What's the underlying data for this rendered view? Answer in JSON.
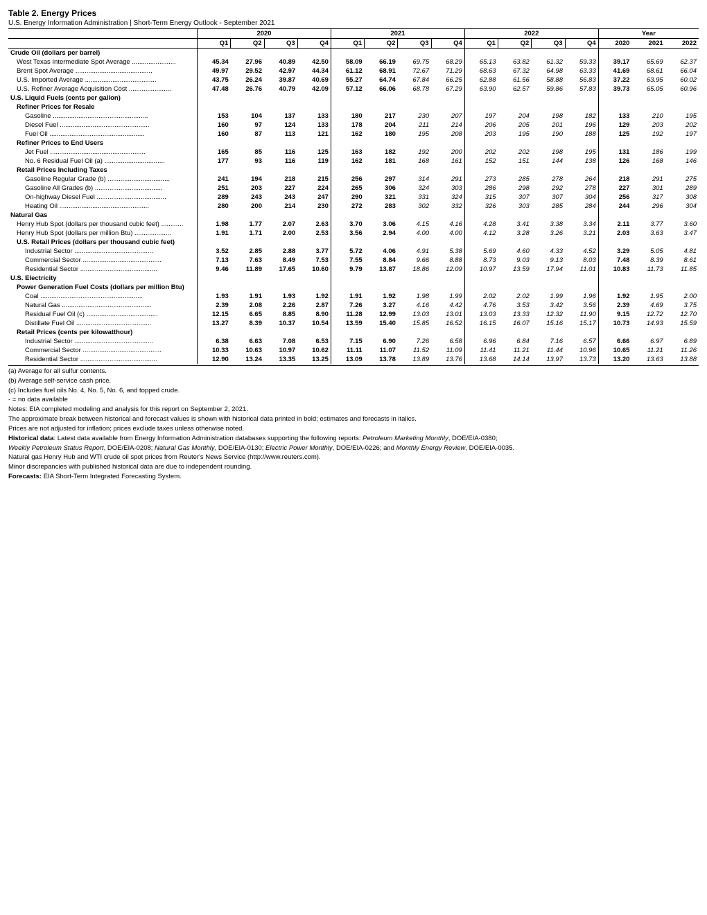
{
  "title": "Table 2.  Energy Prices",
  "subtitle": "U.S. Energy Information Administration  |  Short-Term Energy Outlook - September 2021",
  "year_headers": [
    "2020",
    "2021",
    "2022",
    "Year"
  ],
  "subcol_headers": [
    "Q1",
    "Q2",
    "Q3",
    "Q4",
    "Q1",
    "Q2",
    "Q3",
    "Q4",
    "Q1",
    "Q2",
    "Q3",
    "Q4",
    "2020",
    "2021",
    "2022"
  ],
  "rows": [
    {
      "type": "section",
      "label": "Crude Oil (dollars per barrel)"
    },
    {
      "type": "data",
      "label": "West Texas Intermediate Spot Average",
      "indent": 1,
      "dots": true,
      "vals": [
        "45.34",
        "27.96",
        "40.89",
        "42.50",
        "58.09",
        "66.19",
        "69.75",
        "68.29",
        "65.13",
        "63.82",
        "61.32",
        "59.33",
        "39.17",
        "65.69",
        "62.37"
      ]
    },
    {
      "type": "data",
      "label": "Brent Spot Average",
      "indent": 1,
      "dots": true,
      "vals": [
        "49.97",
        "29.52",
        "42.97",
        "44.34",
        "61.12",
        "68.91",
        "72.67",
        "71.29",
        "68.63",
        "67.32",
        "64.98",
        "63.33",
        "41.69",
        "68.61",
        "66.04"
      ]
    },
    {
      "type": "data",
      "label": "U.S. Imported Average",
      "indent": 1,
      "dots": true,
      "vals": [
        "43.75",
        "26.24",
        "39.87",
        "40.69",
        "55.27",
        "64.74",
        "67.84",
        "66.25",
        "62.88",
        "61.56",
        "58.88",
        "56.83",
        "37.22",
        "63.95",
        "60.02"
      ]
    },
    {
      "type": "data",
      "label": "U.S. Refiner Average Acquisition Cost",
      "indent": 1,
      "dots": true,
      "vals": [
        "47.48",
        "26.76",
        "40.79",
        "42.09",
        "57.12",
        "66.06",
        "68.78",
        "67.29",
        "63.90",
        "62.57",
        "59.86",
        "57.83",
        "39.73",
        "65.05",
        "60.96"
      ]
    },
    {
      "type": "section",
      "label": "U.S. Liquid Fuels (cents per gallon)"
    },
    {
      "type": "subhead",
      "label": "Refiner Prices for Resale",
      "indent": 1
    },
    {
      "type": "data",
      "label": "Gasoline",
      "indent": 2,
      "dots": true,
      "vals": [
        "153",
        "104",
        "137",
        "133",
        "180",
        "217",
        "230",
        "207",
        "197",
        "204",
        "198",
        "182",
        "133",
        "210",
        "195"
      ]
    },
    {
      "type": "data",
      "label": "Diesel Fuel",
      "indent": 2,
      "dots": true,
      "vals": [
        "160",
        "97",
        "124",
        "133",
        "178",
        "204",
        "211",
        "214",
        "206",
        "205",
        "201",
        "196",
        "129",
        "203",
        "202"
      ]
    },
    {
      "type": "data",
      "label": "Fuel Oil",
      "indent": 2,
      "dots": true,
      "vals": [
        "160",
        "87",
        "113",
        "121",
        "162",
        "180",
        "195",
        "208",
        "203",
        "195",
        "190",
        "188",
        "125",
        "192",
        "197"
      ]
    },
    {
      "type": "subhead",
      "label": "Refiner Prices to End Users",
      "indent": 1
    },
    {
      "type": "data",
      "label": "Jet Fuel",
      "indent": 2,
      "dots": true,
      "vals": [
        "165",
        "85",
        "116",
        "125",
        "163",
        "182",
        "192",
        "200",
        "202",
        "202",
        "198",
        "195",
        "131",
        "186",
        "199"
      ]
    },
    {
      "type": "data",
      "label": "No. 6 Residual Fuel Oil (a)",
      "indent": 2,
      "dots": true,
      "vals": [
        "177",
        "93",
        "116",
        "119",
        "162",
        "181",
        "168",
        "161",
        "152",
        "151",
        "144",
        "138",
        "126",
        "168",
        "146"
      ]
    },
    {
      "type": "subhead",
      "label": "Retail Prices Including Taxes",
      "indent": 1
    },
    {
      "type": "data",
      "label": "Gasoline Regular Grade (b)",
      "indent": 2,
      "dots": true,
      "vals": [
        "241",
        "194",
        "218",
        "215",
        "256",
        "297",
        "314",
        "291",
        "273",
        "285",
        "278",
        "264",
        "218",
        "291",
        "275"
      ]
    },
    {
      "type": "data",
      "label": "Gasoline All Grades (b)",
      "indent": 2,
      "dots": true,
      "vals": [
        "251",
        "203",
        "227",
        "224",
        "265",
        "306",
        "324",
        "303",
        "286",
        "298",
        "292",
        "278",
        "227",
        "301",
        "289"
      ]
    },
    {
      "type": "data",
      "label": "On-highway Diesel Fuel",
      "indent": 2,
      "dots": true,
      "vals": [
        "289",
        "243",
        "243",
        "247",
        "290",
        "321",
        "331",
        "324",
        "315",
        "307",
        "307",
        "304",
        "256",
        "317",
        "308"
      ]
    },
    {
      "type": "data",
      "label": "Heating Oil",
      "indent": 2,
      "dots": true,
      "vals": [
        "280",
        "200",
        "214",
        "230",
        "272",
        "283",
        "302",
        "332",
        "326",
        "303",
        "285",
        "284",
        "244",
        "296",
        "304"
      ]
    },
    {
      "type": "section",
      "label": "Natural Gas"
    },
    {
      "type": "data",
      "label": "Henry Hub Spot (dollars per thousand cubic feet)",
      "indent": 1,
      "dots": true,
      "vals": [
        "1.98",
        "1.77",
        "2.07",
        "2.63",
        "3.70",
        "3.06",
        "4.15",
        "4.16",
        "4.28",
        "3.41",
        "3.38",
        "3.34",
        "2.11",
        "3.77",
        "3.60"
      ]
    },
    {
      "type": "data",
      "label": "Henry Hub Spot (dollars per million Btu)",
      "indent": 1,
      "dots": true,
      "vals": [
        "1.91",
        "1.71",
        "2.00",
        "2.53",
        "3.56",
        "2.94",
        "4.00",
        "4.00",
        "4.12",
        "3.28",
        "3.26",
        "3.21",
        "2.03",
        "3.63",
        "3.47"
      ]
    },
    {
      "type": "subhead",
      "label": "U.S. Retail Prices (dollars per thousand cubic feet)",
      "indent": 1
    },
    {
      "type": "data",
      "label": "Industrial Sector",
      "indent": 2,
      "dots": true,
      "vals": [
        "3.52",
        "2.85",
        "2.88",
        "3.77",
        "5.72",
        "4.06",
        "4.91",
        "5.38",
        "5.69",
        "4.60",
        "4.33",
        "4.52",
        "3.29",
        "5.05",
        "4.81"
      ]
    },
    {
      "type": "data",
      "label": "Commercial Sector",
      "indent": 2,
      "dots": true,
      "vals": [
        "7.13",
        "7.63",
        "8.49",
        "7.53",
        "7.55",
        "8.84",
        "9.66",
        "8.88",
        "8.73",
        "9.03",
        "9.13",
        "8.03",
        "7.48",
        "8.39",
        "8.61"
      ]
    },
    {
      "type": "data",
      "label": "Residential Sector",
      "indent": 2,
      "dots": true,
      "vals": [
        "9.46",
        "11.89",
        "17.65",
        "10.60",
        "9.79",
        "13.87",
        "18.86",
        "12.09",
        "10.97",
        "13.59",
        "17.94",
        "11.01",
        "10.83",
        "11.73",
        "11.85"
      ]
    },
    {
      "type": "section",
      "label": "U.S. Electricity"
    },
    {
      "type": "subhead",
      "label": "Power Generation Fuel Costs (dollars per million Btu)",
      "indent": 1
    },
    {
      "type": "data",
      "label": "Coal",
      "indent": 2,
      "dots": true,
      "vals": [
        "1.93",
        "1.91",
        "1.93",
        "1.92",
        "1.91",
        "1.92",
        "1.98",
        "1.99",
        "2.02",
        "2.02",
        "1.99",
        "1.96",
        "1.92",
        "1.95",
        "2.00"
      ]
    },
    {
      "type": "data",
      "label": "Natural Gas",
      "indent": 2,
      "dots": true,
      "vals": [
        "2.39",
        "2.08",
        "2.26",
        "2.87",
        "7.26",
        "3.27",
        "4.16",
        "4.42",
        "4.76",
        "3.53",
        "3.42",
        "3.56",
        "2.39",
        "4.69",
        "3.75"
      ]
    },
    {
      "type": "data",
      "label": "Residual Fuel Oil (c)",
      "indent": 2,
      "dots": true,
      "vals": [
        "12.15",
        "6.65",
        "8.85",
        "8.90",
        "11.28",
        "12.99",
        "13.03",
        "13.01",
        "13.03",
        "13.33",
        "12.32",
        "11.90",
        "9.15",
        "12.72",
        "12.70"
      ]
    },
    {
      "type": "data",
      "label": "Distillate Fuel Oil",
      "indent": 2,
      "dots": true,
      "vals": [
        "13.27",
        "8.39",
        "10.37",
        "10.54",
        "13.59",
        "15.40",
        "15.85",
        "16.52",
        "16.15",
        "16.07",
        "15.16",
        "15.17",
        "10.73",
        "14.93",
        "15.59"
      ]
    },
    {
      "type": "subhead",
      "label": "Retail Prices (cents per kilowatthour)",
      "indent": 1
    },
    {
      "type": "data",
      "label": "Industrial Sector",
      "indent": 2,
      "dots": true,
      "vals": [
        "6.38",
        "6.63",
        "7.08",
        "6.53",
        "7.15",
        "6.90",
        "7.26",
        "6.58",
        "6.96",
        "6.84",
        "7.16",
        "6.57",
        "6.66",
        "6.97",
        "6.89"
      ]
    },
    {
      "type": "data",
      "label": "Commercial Sector",
      "indent": 2,
      "dots": true,
      "vals": [
        "10.33",
        "10.63",
        "10.97",
        "10.62",
        "11.11",
        "11.07",
        "11.52",
        "11.09",
        "11.41",
        "11.21",
        "11.44",
        "10.96",
        "10.65",
        "11.21",
        "11.26"
      ]
    },
    {
      "type": "data",
      "label": "Residential Sector",
      "indent": 2,
      "dots": true,
      "vals": [
        "12.90",
        "13.24",
        "13.35",
        "13.25",
        "13.09",
        "13.78",
        "13.89",
        "13.76",
        "13.68",
        "14.14",
        "13.97",
        "13.73",
        "13.20",
        "13.63",
        "13.88"
      ]
    }
  ],
  "col_styles": [
    "hist",
    "hist",
    "hist",
    "hist",
    "hist",
    "hist",
    "fcst",
    "fcst",
    "fcst",
    "fcst",
    "fcst",
    "fcst",
    "hist",
    "fcst",
    "fcst"
  ],
  "group_end_cols": [
    3,
    7,
    11
  ],
  "footnotes": [
    "(a) Average for all sulfur contents.",
    "(b) Average self-service cash price.",
    "(c) Includes fuel oils No. 4, No. 5, No. 6, and topped crude.",
    "- = no data available",
    "Notes: EIA completed modeling and analysis for this report on September 2, 2021.",
    "The approximate break between historical and forecast values is shown with historical data printed in bold; estimates and forecasts in italics.",
    "Prices are not adjusted for inflation; prices exclude taxes unless otherwise noted.",
    "<b>Historical data</b>: Latest data available from Energy Information Administration databases supporting the following reports: <i>Petroleum Marketing Monthly</i>, DOE/EIA-0380;",
    "<i>Weekly Petroleum Status Report</i>, DOE/EIA-0208; <i>Natural Gas Monthly</i>, DOE/EIA-0130; <i>Electric Power Monthly</i>, DOE/EIA-0226; and <i>Monthly Energy Review</i>, DOE/EIA-0035.",
    "Natural gas Henry Hub and WTI crude oil spot prices from Reuter's News Service (http://www.reuters.com).",
    "Minor discrepancies with published historical data are due to independent rounding.",
    "<b>Forecasts:</b> EIA Short-Term Integrated Forecasting System."
  ]
}
